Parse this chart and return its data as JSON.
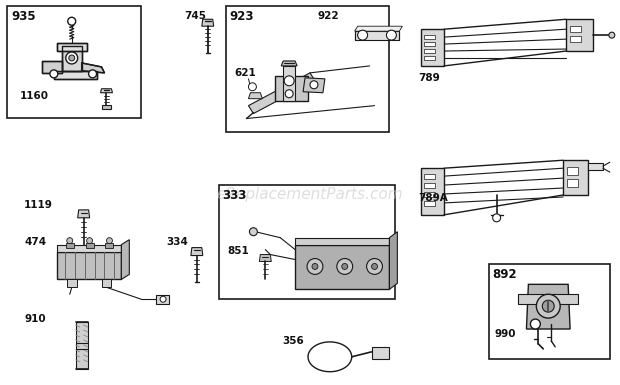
{
  "bg_color": "#ffffff",
  "watermark": "eReplacementParts.com",
  "watermark_color": "#c8c8c8",
  "watermark_fontsize": 11,
  "label_fontsize": 8.0,
  "label_color": "#111111",
  "label_fontweight": "bold"
}
